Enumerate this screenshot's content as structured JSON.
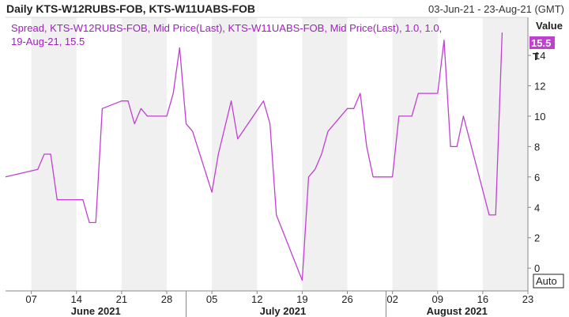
{
  "header": {
    "title": "Daily KTS-W12RUBS-FOB, KTS-W11UABS-FOB",
    "date_range": "03-Jun-21 - 23-Aug-21 (GMT)"
  },
  "legend": {
    "line1": "Spread, KTS-W12RUBS-FOB, Mid Price(Last), KTS-W11UABS-FOB, Mid Price(Last), 1.0, 1.0,",
    "line2": "19-Aug-21, 15.5"
  },
  "y_axis": {
    "title": "Value",
    "last_value_tag": "15.5",
    "last_value_suffix": "T",
    "auto_button": "Auto"
  },
  "colors": {
    "series": "#c040d0",
    "legend_text": "#a020c0",
    "band": "#f0f0f0",
    "axis": "#888888",
    "tag_bg": "#c040d0"
  },
  "chart_data": {
    "type": "line",
    "title": "Daily KTS-W12RUBS-FOB, KTS-W11UABS-FOB",
    "xlabel": "",
    "ylabel": "Value",
    "ylim": [
      -1.5,
      16.5
    ],
    "xlim": [
      "2021-06-03",
      "2021-08-23"
    ],
    "grid": false,
    "legend_position": "top-left",
    "x_tick_labels": [
      "07",
      "14",
      "21",
      "28",
      "05",
      "12",
      "19",
      "26",
      "02",
      "09",
      "16",
      "23"
    ],
    "x_ticks": [
      "2021-06-07",
      "2021-06-14",
      "2021-06-21",
      "2021-06-28",
      "2021-07-05",
      "2021-07-12",
      "2021-07-19",
      "2021-07-26",
      "2021-08-02",
      "2021-08-09",
      "2021-08-16",
      "2021-08-23"
    ],
    "month_labels": [
      {
        "label": "June 2021",
        "date": "2021-06-17"
      },
      {
        "label": "July 2021",
        "date": "2021-07-16"
      },
      {
        "label": "August 2021",
        "date": "2021-08-12"
      }
    ],
    "y_ticks": [
      0,
      2,
      4,
      6,
      8,
      10,
      12,
      14
    ],
    "series": [
      {
        "name": "Spread, KTS-W12RUBS-FOB, Mid Price(Last), KTS-W11UABS-FOB, Mid Price(Last), 1.0, 1.0",
        "points": [
          [
            "2021-06-03",
            6.0
          ],
          [
            "2021-06-08",
            6.5
          ],
          [
            "2021-06-09",
            7.5
          ],
          [
            "2021-06-10",
            7.5
          ],
          [
            "2021-06-11",
            4.5
          ],
          [
            "2021-06-14",
            4.5
          ],
          [
            "2021-06-15",
            4.5
          ],
          [
            "2021-06-16",
            3.0
          ],
          [
            "2021-06-17",
            3.0
          ],
          [
            "2021-06-18",
            10.5
          ],
          [
            "2021-06-21",
            11.0
          ],
          [
            "2021-06-22",
            11.0
          ],
          [
            "2021-06-23",
            9.5
          ],
          [
            "2021-06-24",
            10.5
          ],
          [
            "2021-06-25",
            10.0
          ],
          [
            "2021-06-28",
            10.0
          ],
          [
            "2021-06-29",
            11.5
          ],
          [
            "2021-06-30",
            14.5
          ],
          [
            "2021-07-01",
            9.5
          ],
          [
            "2021-07-02",
            9.0
          ],
          [
            "2021-07-05",
            5.0
          ],
          [
            "2021-07-06",
            7.5
          ],
          [
            "2021-07-08",
            11.0
          ],
          [
            "2021-07-09",
            8.5
          ],
          [
            "2021-07-13",
            11.0
          ],
          [
            "2021-07-14",
            9.5
          ],
          [
            "2021-07-15",
            3.5
          ],
          [
            "2021-07-19",
            -0.8
          ],
          [
            "2021-07-20",
            6.0
          ],
          [
            "2021-07-21",
            6.5
          ],
          [
            "2021-07-22",
            7.5
          ],
          [
            "2021-07-23",
            9.0
          ],
          [
            "2021-07-26",
            10.5
          ],
          [
            "2021-07-27",
            10.5
          ],
          [
            "2021-07-28",
            11.5
          ],
          [
            "2021-07-29",
            8.0
          ],
          [
            "2021-07-30",
            6.0
          ],
          [
            "2021-08-02",
            6.0
          ],
          [
            "2021-08-03",
            10.0
          ],
          [
            "2021-08-05",
            10.0
          ],
          [
            "2021-08-06",
            11.5
          ],
          [
            "2021-08-09",
            11.5
          ],
          [
            "2021-08-10",
            15.0
          ],
          [
            "2021-08-11",
            8.0
          ],
          [
            "2021-08-12",
            8.0
          ],
          [
            "2021-08-13",
            10.0
          ],
          [
            "2021-08-17",
            3.5
          ],
          [
            "2021-08-18",
            3.5
          ],
          [
            "2021-08-19",
            15.5
          ]
        ]
      }
    ]
  }
}
